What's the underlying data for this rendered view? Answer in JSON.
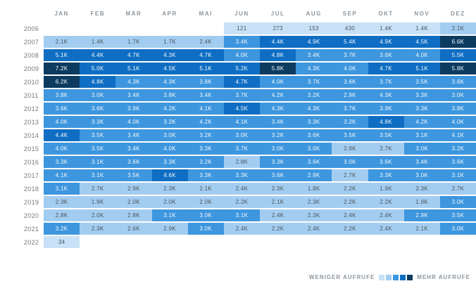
{
  "chart_data": {
    "type": "heatmap",
    "title": "",
    "columns": [
      "JAN",
      "FEB",
      "MÄR",
      "APR",
      "MAI",
      "JUN",
      "JUL",
      "AUG",
      "SEP",
      "OKT",
      "NOV",
      "DEZ"
    ],
    "rows": [
      {
        "year": "2006",
        "cells": [
          null,
          null,
          null,
          null,
          null,
          {
            "v": "121",
            "level": 1
          },
          {
            "v": "273",
            "level": 1
          },
          {
            "v": "153",
            "level": 1
          },
          {
            "v": "430",
            "level": 1
          },
          {
            "v": "1.4K",
            "level": 1
          },
          {
            "v": "1.4K",
            "level": 1
          },
          {
            "v": "2.1K",
            "level": 2
          }
        ]
      },
      {
        "year": "2007",
        "cells": [
          {
            "v": "2.1K",
            "level": 2
          },
          {
            "v": "1.4K",
            "level": 2
          },
          {
            "v": "1.7K",
            "level": 2
          },
          {
            "v": "1.7K",
            "level": 2
          },
          {
            "v": "2.4K",
            "level": 2
          },
          {
            "v": "3.4K",
            "level": 3
          },
          {
            "v": "4.4K",
            "level": 4
          },
          {
            "v": "4.9K",
            "level": 4
          },
          {
            "v": "5.4K",
            "level": 4
          },
          {
            "v": "4.9K",
            "level": 4
          },
          {
            "v": "4.5K",
            "level": 4
          },
          {
            "v": "6.6K",
            "level": 5
          }
        ]
      },
      {
        "year": "2008",
        "cells": [
          {
            "v": "5.1K",
            "level": 4
          },
          {
            "v": "4.4K",
            "level": 4
          },
          {
            "v": "4.7K",
            "level": 4
          },
          {
            "v": "4.3K",
            "level": 4
          },
          {
            "v": "4.7K",
            "level": 4
          },
          {
            "v": "4.0K",
            "level": 3
          },
          {
            "v": "4.8K",
            "level": 4
          },
          {
            "v": "3.4K",
            "level": 3
          },
          {
            "v": "3.7K",
            "level": 3
          },
          {
            "v": "3.6K",
            "level": 3
          },
          {
            "v": "4.0K",
            "level": 3
          },
          {
            "v": "5.5K",
            "level": 4
          }
        ]
      },
      {
        "year": "2009",
        "cells": [
          {
            "v": "7.2K",
            "level": 5
          },
          {
            "v": "5.0K",
            "level": 4
          },
          {
            "v": "5.1K",
            "level": 4
          },
          {
            "v": "4.5K",
            "level": 4
          },
          {
            "v": "5.1K",
            "level": 4
          },
          {
            "v": "5.2K",
            "level": 4
          },
          {
            "v": "5.8K",
            "level": 5
          },
          {
            "v": "4.3K",
            "level": 3
          },
          {
            "v": "4.0K",
            "level": 3
          },
          {
            "v": "4.7K",
            "level": 4
          },
          {
            "v": "5.1K",
            "level": 4
          },
          {
            "v": "5.8K",
            "level": 5
          }
        ]
      },
      {
        "year": "2010",
        "cells": [
          {
            "v": "6.2K",
            "level": 5
          },
          {
            "v": "4.8K",
            "level": 4
          },
          {
            "v": "4.3K",
            "level": 3
          },
          {
            "v": "4.3K",
            "level": 3
          },
          {
            "v": "3.8K",
            "level": 3
          },
          {
            "v": "4.7K",
            "level": 4
          },
          {
            "v": "4.0K",
            "level": 3
          },
          {
            "v": "3.7K",
            "level": 3
          },
          {
            "v": "3.6K",
            "level": 3
          },
          {
            "v": "3.7K",
            "level": 3
          },
          {
            "v": "3.5K",
            "level": 3
          },
          {
            "v": "3.6K",
            "level": 3
          }
        ]
      },
      {
        "year": "2011",
        "cells": [
          {
            "v": "3.8K",
            "level": 3
          },
          {
            "v": "3.0K",
            "level": 3
          },
          {
            "v": "3.4K",
            "level": 3
          },
          {
            "v": "3.8K",
            "level": 3
          },
          {
            "v": "3.4K",
            "level": 3
          },
          {
            "v": "3.7K",
            "level": 3
          },
          {
            "v": "4.2K",
            "level": 3
          },
          {
            "v": "3.2K",
            "level": 3
          },
          {
            "v": "2.9K",
            "level": 3
          },
          {
            "v": "4.3K",
            "level": 3
          },
          {
            "v": "3.3K",
            "level": 3
          },
          {
            "v": "3.0K",
            "level": 3
          }
        ]
      },
      {
        "year": "2012",
        "cells": [
          {
            "v": "3.6K",
            "level": 3
          },
          {
            "v": "3.6K",
            "level": 3
          },
          {
            "v": "3.9K",
            "level": 3
          },
          {
            "v": "4.2K",
            "level": 3
          },
          {
            "v": "4.1K",
            "level": 3
          },
          {
            "v": "4.5K",
            "level": 4
          },
          {
            "v": "4.3K",
            "level": 3
          },
          {
            "v": "4.3K",
            "level": 3
          },
          {
            "v": "3.7K",
            "level": 3
          },
          {
            "v": "3.9K",
            "level": 3
          },
          {
            "v": "3.3K",
            "level": 3
          },
          {
            "v": "3.8K",
            "level": 3
          }
        ]
      },
      {
        "year": "2013",
        "cells": [
          {
            "v": "4.0K",
            "level": 3
          },
          {
            "v": "3.3K",
            "level": 3
          },
          {
            "v": "4.0K",
            "level": 3
          },
          {
            "v": "3.2K",
            "level": 3
          },
          {
            "v": "4.2K",
            "level": 3
          },
          {
            "v": "4.1K",
            "level": 3
          },
          {
            "v": "3.4K",
            "level": 3
          },
          {
            "v": "3.3K",
            "level": 3
          },
          {
            "v": "3.2K",
            "level": 3
          },
          {
            "v": "4.8K",
            "level": 4
          },
          {
            "v": "4.2K",
            "level": 3
          },
          {
            "v": "4.0K",
            "level": 3
          }
        ]
      },
      {
        "year": "2014",
        "cells": [
          {
            "v": "4.4K",
            "level": 4
          },
          {
            "v": "3.5K",
            "level": 3
          },
          {
            "v": "3.4K",
            "level": 3
          },
          {
            "v": "3.0K",
            "level": 3
          },
          {
            "v": "3.2K",
            "level": 3
          },
          {
            "v": "3.0K",
            "level": 3
          },
          {
            "v": "3.2K",
            "level": 3
          },
          {
            "v": "3.6K",
            "level": 3
          },
          {
            "v": "3.5K",
            "level": 3
          },
          {
            "v": "3.5K",
            "level": 3
          },
          {
            "v": "3.1K",
            "level": 3
          },
          {
            "v": "4.1K",
            "level": 3
          }
        ]
      },
      {
        "year": "2015",
        "cells": [
          {
            "v": "4.0K",
            "level": 3
          },
          {
            "v": "3.5K",
            "level": 3
          },
          {
            "v": "3.4K",
            "level": 3
          },
          {
            "v": "4.0K",
            "level": 3
          },
          {
            "v": "3.3K",
            "level": 3
          },
          {
            "v": "3.7K",
            "level": 3
          },
          {
            "v": "3.0K",
            "level": 3
          },
          {
            "v": "3.0K",
            "level": 3
          },
          {
            "v": "2.8K",
            "level": 2
          },
          {
            "v": "2.7K",
            "level": 2
          },
          {
            "v": "3.0K",
            "level": 3
          },
          {
            "v": "3.2K",
            "level": 3
          }
        ]
      },
      {
        "year": "2016",
        "cells": [
          {
            "v": "3.3K",
            "level": 3
          },
          {
            "v": "3.1K",
            "level": 3
          },
          {
            "v": "3.6K",
            "level": 3
          },
          {
            "v": "3.3K",
            "level": 3
          },
          {
            "v": "3.2K",
            "level": 3
          },
          {
            "v": "2.8K",
            "level": 2
          },
          {
            "v": "3.3K",
            "level": 3
          },
          {
            "v": "3.6K",
            "level": 3
          },
          {
            "v": "3.0K",
            "level": 3
          },
          {
            "v": "3.6K",
            "level": 3
          },
          {
            "v": "3.4K",
            "level": 3
          },
          {
            "v": "3.6K",
            "level": 3
          }
        ]
      },
      {
        "year": "2017",
        "cells": [
          {
            "v": "4.1K",
            "level": 3
          },
          {
            "v": "3.1K",
            "level": 3
          },
          {
            "v": "3.5K",
            "level": 3
          },
          {
            "v": "4.6K",
            "level": 4
          },
          {
            "v": "3.3K",
            "level": 3
          },
          {
            "v": "3.3K",
            "level": 3
          },
          {
            "v": "3.6K",
            "level": 3
          },
          {
            "v": "2.9K",
            "level": 3
          },
          {
            "v": "2.7K",
            "level": 2
          },
          {
            "v": "3.3K",
            "level": 3
          },
          {
            "v": "3.0K",
            "level": 3
          },
          {
            "v": "3.1K",
            "level": 3
          }
        ]
      },
      {
        "year": "2018",
        "cells": [
          {
            "v": "3.1K",
            "level": 3
          },
          {
            "v": "2.7K",
            "level": 2
          },
          {
            "v": "2.9K",
            "level": 2
          },
          {
            "v": "2.3K",
            "level": 2
          },
          {
            "v": "2.1K",
            "level": 2
          },
          {
            "v": "2.4K",
            "level": 2
          },
          {
            "v": "2.3K",
            "level": 2
          },
          {
            "v": "1.8K",
            "level": 2
          },
          {
            "v": "2.2K",
            "level": 2
          },
          {
            "v": "1.9K",
            "level": 2
          },
          {
            "v": "2.3K",
            "level": 2
          },
          {
            "v": "2.7K",
            "level": 2
          }
        ]
      },
      {
        "year": "2019",
        "cells": [
          {
            "v": "2.3K",
            "level": 2
          },
          {
            "v": "1.9K",
            "level": 2
          },
          {
            "v": "2.0K",
            "level": 2
          },
          {
            "v": "2.0K",
            "level": 2
          },
          {
            "v": "2.0K",
            "level": 2
          },
          {
            "v": "2.2K",
            "level": 2
          },
          {
            "v": "2.1K",
            "level": 2
          },
          {
            "v": "2.3K",
            "level": 2
          },
          {
            "v": "2.2K",
            "level": 2
          },
          {
            "v": "2.2K",
            "level": 2
          },
          {
            "v": "1.9K",
            "level": 2
          },
          {
            "v": "3.0K",
            "level": 3
          }
        ]
      },
      {
        "year": "2020",
        "cells": [
          {
            "v": "2.8K",
            "level": 2
          },
          {
            "v": "2.0K",
            "level": 2
          },
          {
            "v": "2.8K",
            "level": 2
          },
          {
            "v": "3.1K",
            "level": 3
          },
          {
            "v": "3.0K",
            "level": 3
          },
          {
            "v": "3.1K",
            "level": 3
          },
          {
            "v": "2.4K",
            "level": 2
          },
          {
            "v": "2.3K",
            "level": 2
          },
          {
            "v": "2.4K",
            "level": 2
          },
          {
            "v": "2.4K",
            "level": 2
          },
          {
            "v": "2.9K",
            "level": 3
          },
          {
            "v": "3.5K",
            "level": 3
          }
        ]
      },
      {
        "year": "2021",
        "cells": [
          {
            "v": "3.2K",
            "level": 3
          },
          {
            "v": "2.3K",
            "level": 2
          },
          {
            "v": "2.6K",
            "level": 2
          },
          {
            "v": "2.9K",
            "level": 2
          },
          {
            "v": "3.0K",
            "level": 3
          },
          {
            "v": "2.4K",
            "level": 2
          },
          {
            "v": "2.2K",
            "level": 2
          },
          {
            "v": "2.4K",
            "level": 2
          },
          {
            "v": "2.2K",
            "level": 2
          },
          {
            "v": "2.4K",
            "level": 2
          },
          {
            "v": "2.1K",
            "level": 2
          },
          {
            "v": "3.0K",
            "level": 3
          }
        ]
      },
      {
        "year": "2022",
        "cells": [
          {
            "v": "34",
            "level": 1
          },
          null,
          null,
          null,
          null,
          null,
          null,
          null,
          null,
          null,
          null,
          null
        ]
      }
    ],
    "palette": [
      "#c8e1f6",
      "#a3cdf0",
      "#3d96de",
      "#0f6ec3",
      "#0d3b60"
    ],
    "cell_text_dark": "#4a545e",
    "cell_text_light": "#f4f9fd",
    "label_color": "#8c959d",
    "year_label_color": "#75797d",
    "legend": {
      "min_label": "WENIGER AUFRUFE",
      "max_label": "MEHR AUFRUFE"
    }
  }
}
